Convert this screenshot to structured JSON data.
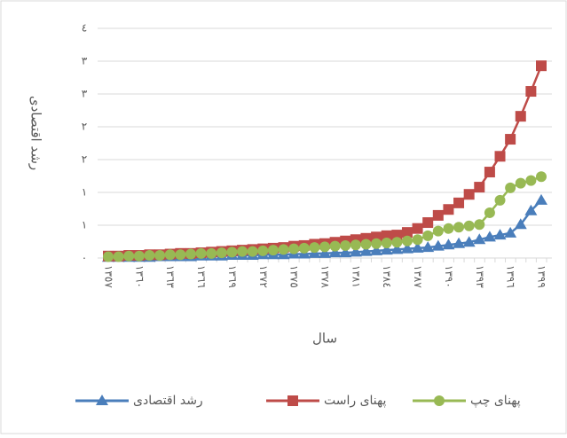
{
  "chart_data": {
    "type": "line",
    "y_label": "رشد اقتصادی",
    "x_label": "سال",
    "categories": [
      "١٣٥٧",
      null,
      null,
      "١٣٦٠",
      null,
      null,
      "١٣٦٣",
      null,
      null,
      "١٣٦٦",
      null,
      null,
      "١٣٦٩",
      null,
      null,
      "١٣٧٢",
      null,
      null,
      "١٣٧٥",
      null,
      null,
      "١٣٧٨",
      null,
      null,
      "١٣٨١",
      null,
      null,
      "١٣٨٤",
      null,
      null,
      "١٣٨٧",
      null,
      null,
      "١٣٩٠",
      null,
      null,
      "١٣٩٣",
      null,
      null,
      "١٣٩٦",
      null,
      null,
      "١٣٩٩"
    ],
    "series": [
      {
        "name": "رشد اقتصادی",
        "color": "#4a7ebb",
        "marker": "triangle",
        "values": [
          0.01,
          0.01,
          0.01,
          0.01,
          0.01,
          0.02,
          0.02,
          0.02,
          0.02,
          0.03,
          0.03,
          0.03,
          0.04,
          0.04,
          0.04,
          0.05,
          0.05,
          0.05,
          0.06,
          0.06,
          0.07,
          0.07,
          0.08,
          0.08,
          0.09,
          0.1,
          0.11,
          0.12,
          0.13,
          0.14,
          0.15,
          0.16,
          0.18,
          0.2,
          0.22,
          0.24,
          0.28,
          0.32,
          0.35,
          0.38,
          0.51,
          0.72,
          0.88
        ]
      },
      {
        "name": "پهنای راست",
        "color": "#be4b48",
        "marker": "square",
        "values": [
          0.03,
          0.03,
          0.04,
          0.04,
          0.05,
          0.05,
          0.06,
          0.07,
          0.07,
          0.08,
          0.09,
          0.1,
          0.11,
          0.12,
          0.13,
          0.14,
          0.15,
          0.16,
          0.18,
          0.19,
          0.21,
          0.22,
          0.24,
          0.26,
          0.28,
          0.3,
          0.32,
          0.34,
          0.35,
          0.39,
          0.45,
          0.54,
          0.65,
          0.74,
          0.84,
          0.97,
          1.08,
          1.31,
          1.55,
          1.81,
          2.16,
          2.54,
          2.93
        ]
      },
      {
        "name": "پهنای چپ",
        "color": "#98b954",
        "marker": "circle",
        "values": [
          0.02,
          0.02,
          0.03,
          0.03,
          0.04,
          0.04,
          0.05,
          0.05,
          0.06,
          0.07,
          0.07,
          0.08,
          0.09,
          0.1,
          0.1,
          0.11,
          0.12,
          0.13,
          0.14,
          0.15,
          0.16,
          0.17,
          0.18,
          0.19,
          0.2,
          0.21,
          0.22,
          0.23,
          0.24,
          0.26,
          0.28,
          0.34,
          0.41,
          0.45,
          0.47,
          0.49,
          0.51,
          0.69,
          0.88,
          1.07,
          1.14,
          1.18,
          1.24
        ]
      }
    ],
    "ylim": [
      0,
      3.5
    ],
    "yticks": [
      {
        "value": 0,
        "label": "٠"
      },
      {
        "value": 0.5,
        "label": "١"
      },
      {
        "value": 1,
        "label": "١"
      },
      {
        "value": 1.5,
        "label": "٢"
      },
      {
        "value": 2,
        "label": "٢"
      },
      {
        "value": 2.5,
        "label": "٣"
      },
      {
        "value": 3,
        "label": "٣"
      },
      {
        "value": 3.5,
        "label": "٤"
      }
    ],
    "grid": true
  }
}
